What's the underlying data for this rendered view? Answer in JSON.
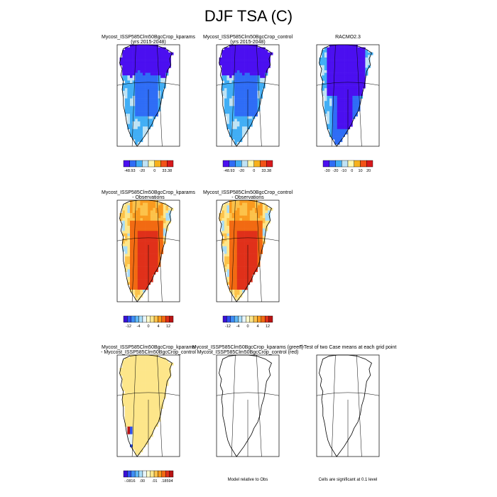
{
  "page_title": "DJF TSA (C)",
  "chart_data": [
    {
      "type": "heatmap",
      "title": "Mycost_ISSP585Clm50BgcCrop_kparams",
      "subtitle": "(yrs 2015-2048)",
      "colorbar_ticks": [
        "-48.93",
        "-20",
        "0",
        "33.38"
      ],
      "colorbar_colors": [
        "#4b0ff0",
        "#2f6df6",
        "#41aef5",
        "#bfe3f5",
        "#fff9b0",
        "#f7b11b",
        "#f25218",
        "#d7191c"
      ],
      "value_range": [
        -48.93,
        33.38
      ]
    },
    {
      "type": "heatmap",
      "title": "Mycost_ISSP585Clm50BgcCrop_control",
      "subtitle": "(yrs 2015-2048)",
      "colorbar_ticks": [
        "-48.93",
        "-20",
        "0",
        "33.38"
      ],
      "colorbar_colors": [
        "#4b0ff0",
        "#2f6df6",
        "#41aef5",
        "#bfe3f5",
        "#fff9b0",
        "#f7b11b",
        "#f25218",
        "#d7191c"
      ],
      "value_range": [
        -48.93,
        33.38
      ]
    },
    {
      "type": "heatmap",
      "title": "RACMO2.3",
      "subtitle": "",
      "colorbar_ticks": [
        "-30",
        "-20",
        "-10",
        "0",
        "10",
        "20"
      ],
      "colorbar_colors": [
        "#4b0ff0",
        "#2f6df6",
        "#41aef5",
        "#bfe3f5",
        "#fff9b0",
        "#f7b11b",
        "#f25218",
        "#d7191c"
      ]
    },
    {
      "type": "heatmap",
      "title": "Mycost_ISSP585Clm50BgcCrop_kparams",
      "subtitle": "- Observations",
      "colorbar_ticks": [
        "-12",
        "-4",
        "0",
        "4",
        "12"
      ],
      "colorbar_colors": [
        "#3b10d8",
        "#2f50f0",
        "#3d8cf5",
        "#60b8f5",
        "#a7dcf7",
        "#e6f5fb",
        "#fffccc",
        "#fde68a",
        "#fcc24a",
        "#f99a1e",
        "#f26a12",
        "#e0301a",
        "#b81414"
      ]
    },
    {
      "type": "heatmap",
      "title": "Mycost_ISSP585Clm50BgcCrop_control",
      "subtitle": "- Observations",
      "colorbar_ticks": [
        "-12",
        "-4",
        "0",
        "4",
        "12"
      ],
      "colorbar_colors": [
        "#3b10d8",
        "#2f50f0",
        "#3d8cf5",
        "#60b8f5",
        "#a7dcf7",
        "#e6f5fb",
        "#fffccc",
        "#fde68a",
        "#fcc24a",
        "#f99a1e",
        "#f26a12",
        "#e0301a",
        "#b81414"
      ]
    },
    {
      "type": "heatmap",
      "title": "Mycost_ISSP585Clm50BgcCrop_kparams",
      "subtitle": "- Myccost_ISSP585Clm50BgcCrop_control",
      "colorbar_ticks": [
        "-.0816",
        ".00",
        ".01",
        ".18594"
      ],
      "colorbar_colors": [
        "#3b10d8",
        "#2f50f0",
        "#3d8cf5",
        "#60b8f5",
        "#a7dcf7",
        "#e6f5fb",
        "#fffccc",
        "#fde68a",
        "#fcc24a",
        "#f99a1e",
        "#f26a12",
        "#e0301a",
        "#b81414"
      ]
    },
    {
      "type": "heatmap",
      "title": "Mycost_ISSP585Clm50BgcCrop_kparams (green)",
      "subtitle": "Mycost_ISSP585Clm50BgcCrop_control (red)",
      "footer": "Model relative to Obs"
    },
    {
      "type": "heatmap",
      "title": "T-Test of two Case means at each grid point",
      "subtitle": "",
      "footer": "Cells are significant at 0.1 level"
    }
  ]
}
